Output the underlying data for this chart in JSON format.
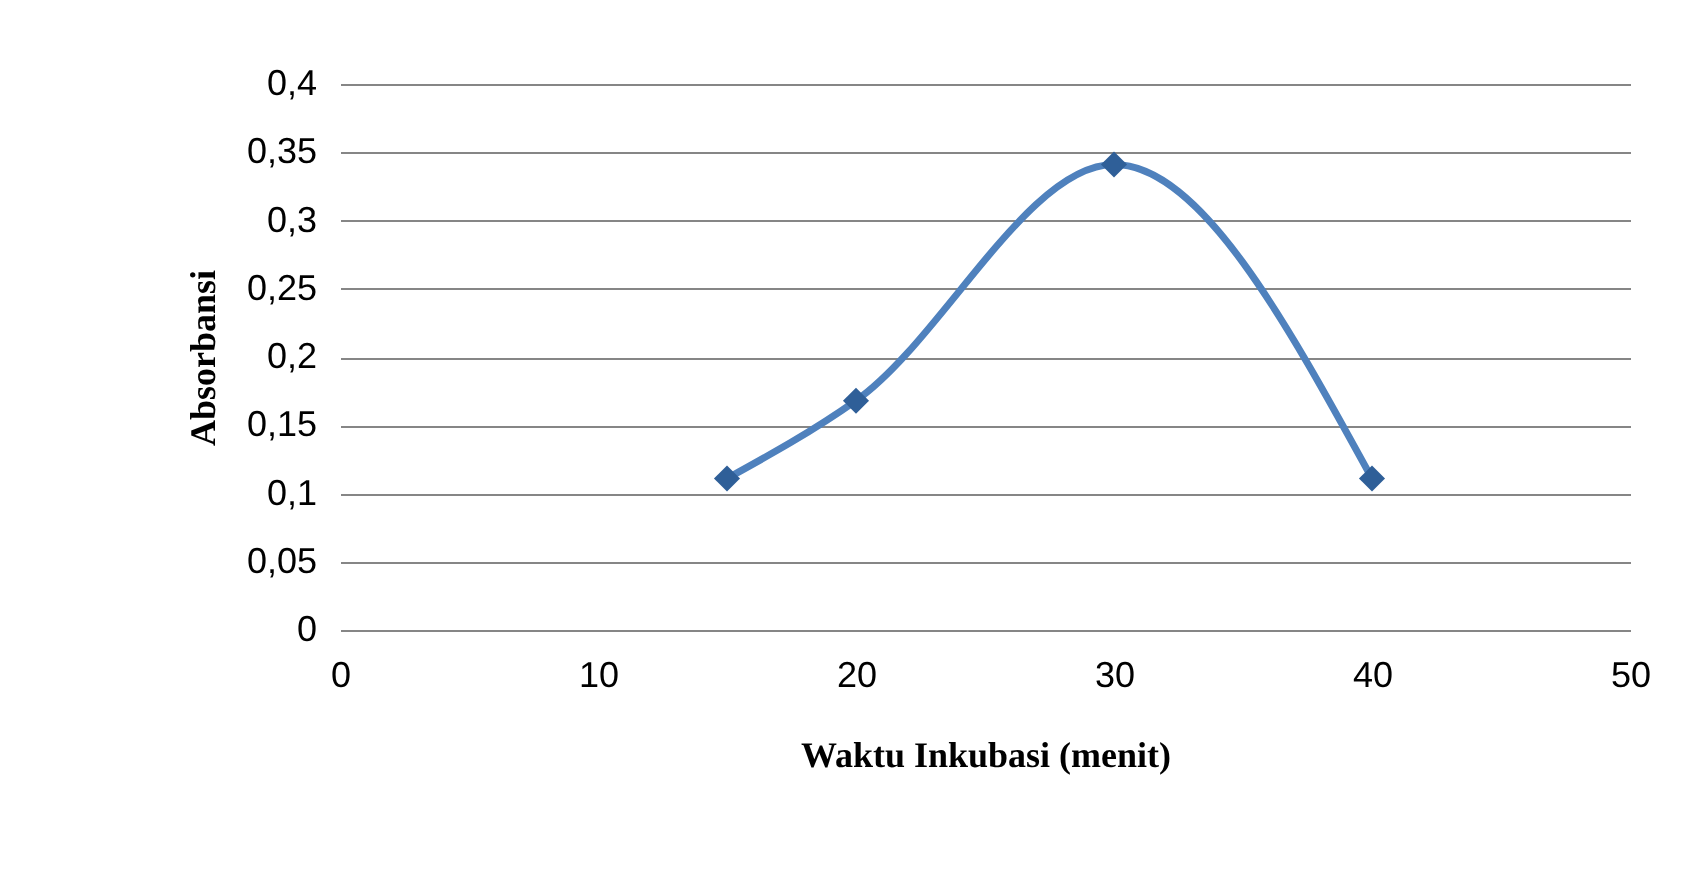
{
  "chart_data": {
    "type": "line",
    "xlabel": "Waktu Inkubasi (menit)",
    "ylabel": "Absorbansi",
    "x": [
      15,
      20,
      30,
      40
    ],
    "series": [
      {
        "color": "#4f81bd",
        "values": [
          0.111,
          0.168,
          0.341,
          0.111
        ]
      }
    ],
    "xlim": [
      0,
      50
    ],
    "xticks": [
      0,
      10,
      20,
      30,
      40,
      50
    ],
    "ylim": [
      0,
      0.4
    ],
    "yticks": [
      {
        "value": 0,
        "label": "0"
      },
      {
        "value": 0.05,
        "label": "0,05"
      },
      {
        "value": 0.1,
        "label": "0,1"
      },
      {
        "value": 0.15,
        "label": "0,15"
      },
      {
        "value": 0.2,
        "label": "0,2"
      },
      {
        "value": 0.25,
        "label": "0,25"
      },
      {
        "value": 0.3,
        "label": "0,3"
      },
      {
        "value": 0.35,
        "label": "0,35"
      },
      {
        "value": 0.4,
        "label": "0,4"
      }
    ],
    "grid": "y",
    "marker": "diamond",
    "line_style": "solid"
  }
}
